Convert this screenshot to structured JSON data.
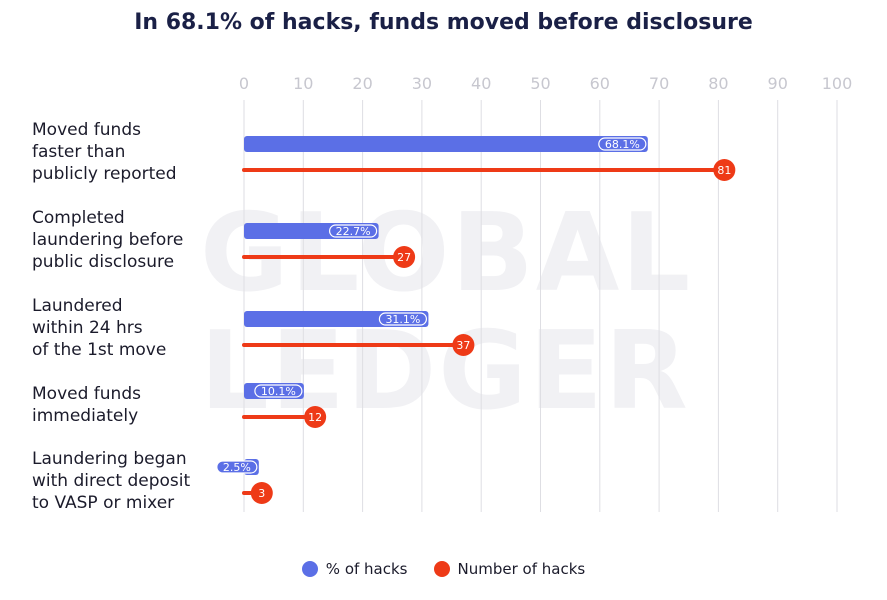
{
  "chart_data": {
    "type": "bar",
    "title": "In 68.1% of hacks, funds moved before disclosure",
    "categories": [
      "Moved funds\nfaster than\npublicly reported",
      "Completed\nlaundering before\npublic disclosure",
      "Laundered\nwithin 24 hrs\nof the 1st move",
      "Moved funds\nimmediately",
      "Laundering began\nwith direct deposit\nto VASP or mixer"
    ],
    "series": [
      {
        "name": "% of hacks",
        "values": [
          68.1,
          22.7,
          31.1,
          10.1,
          2.5
        ],
        "labels": [
          "68.1%",
          "22.7%",
          "31.1%",
          "10.1%",
          "2.5%"
        ],
        "color": "#5b6fe6"
      },
      {
        "name": "Number of hacks",
        "values": [
          81,
          27,
          37,
          12,
          3
        ],
        "labels": [
          "81",
          "27",
          "37",
          "12",
          "3"
        ],
        "color": "#ee3a17"
      }
    ],
    "xlim": [
      0,
      100
    ],
    "xticks": [
      "0",
      "10",
      "20",
      "30",
      "40",
      "50",
      "60",
      "70",
      "80",
      "90",
      "100"
    ],
    "grid": true,
    "axis_position": "top",
    "legend_position": "bottom-center"
  },
  "watermark": [
    "GLOBAL",
    "LEDGER"
  ]
}
